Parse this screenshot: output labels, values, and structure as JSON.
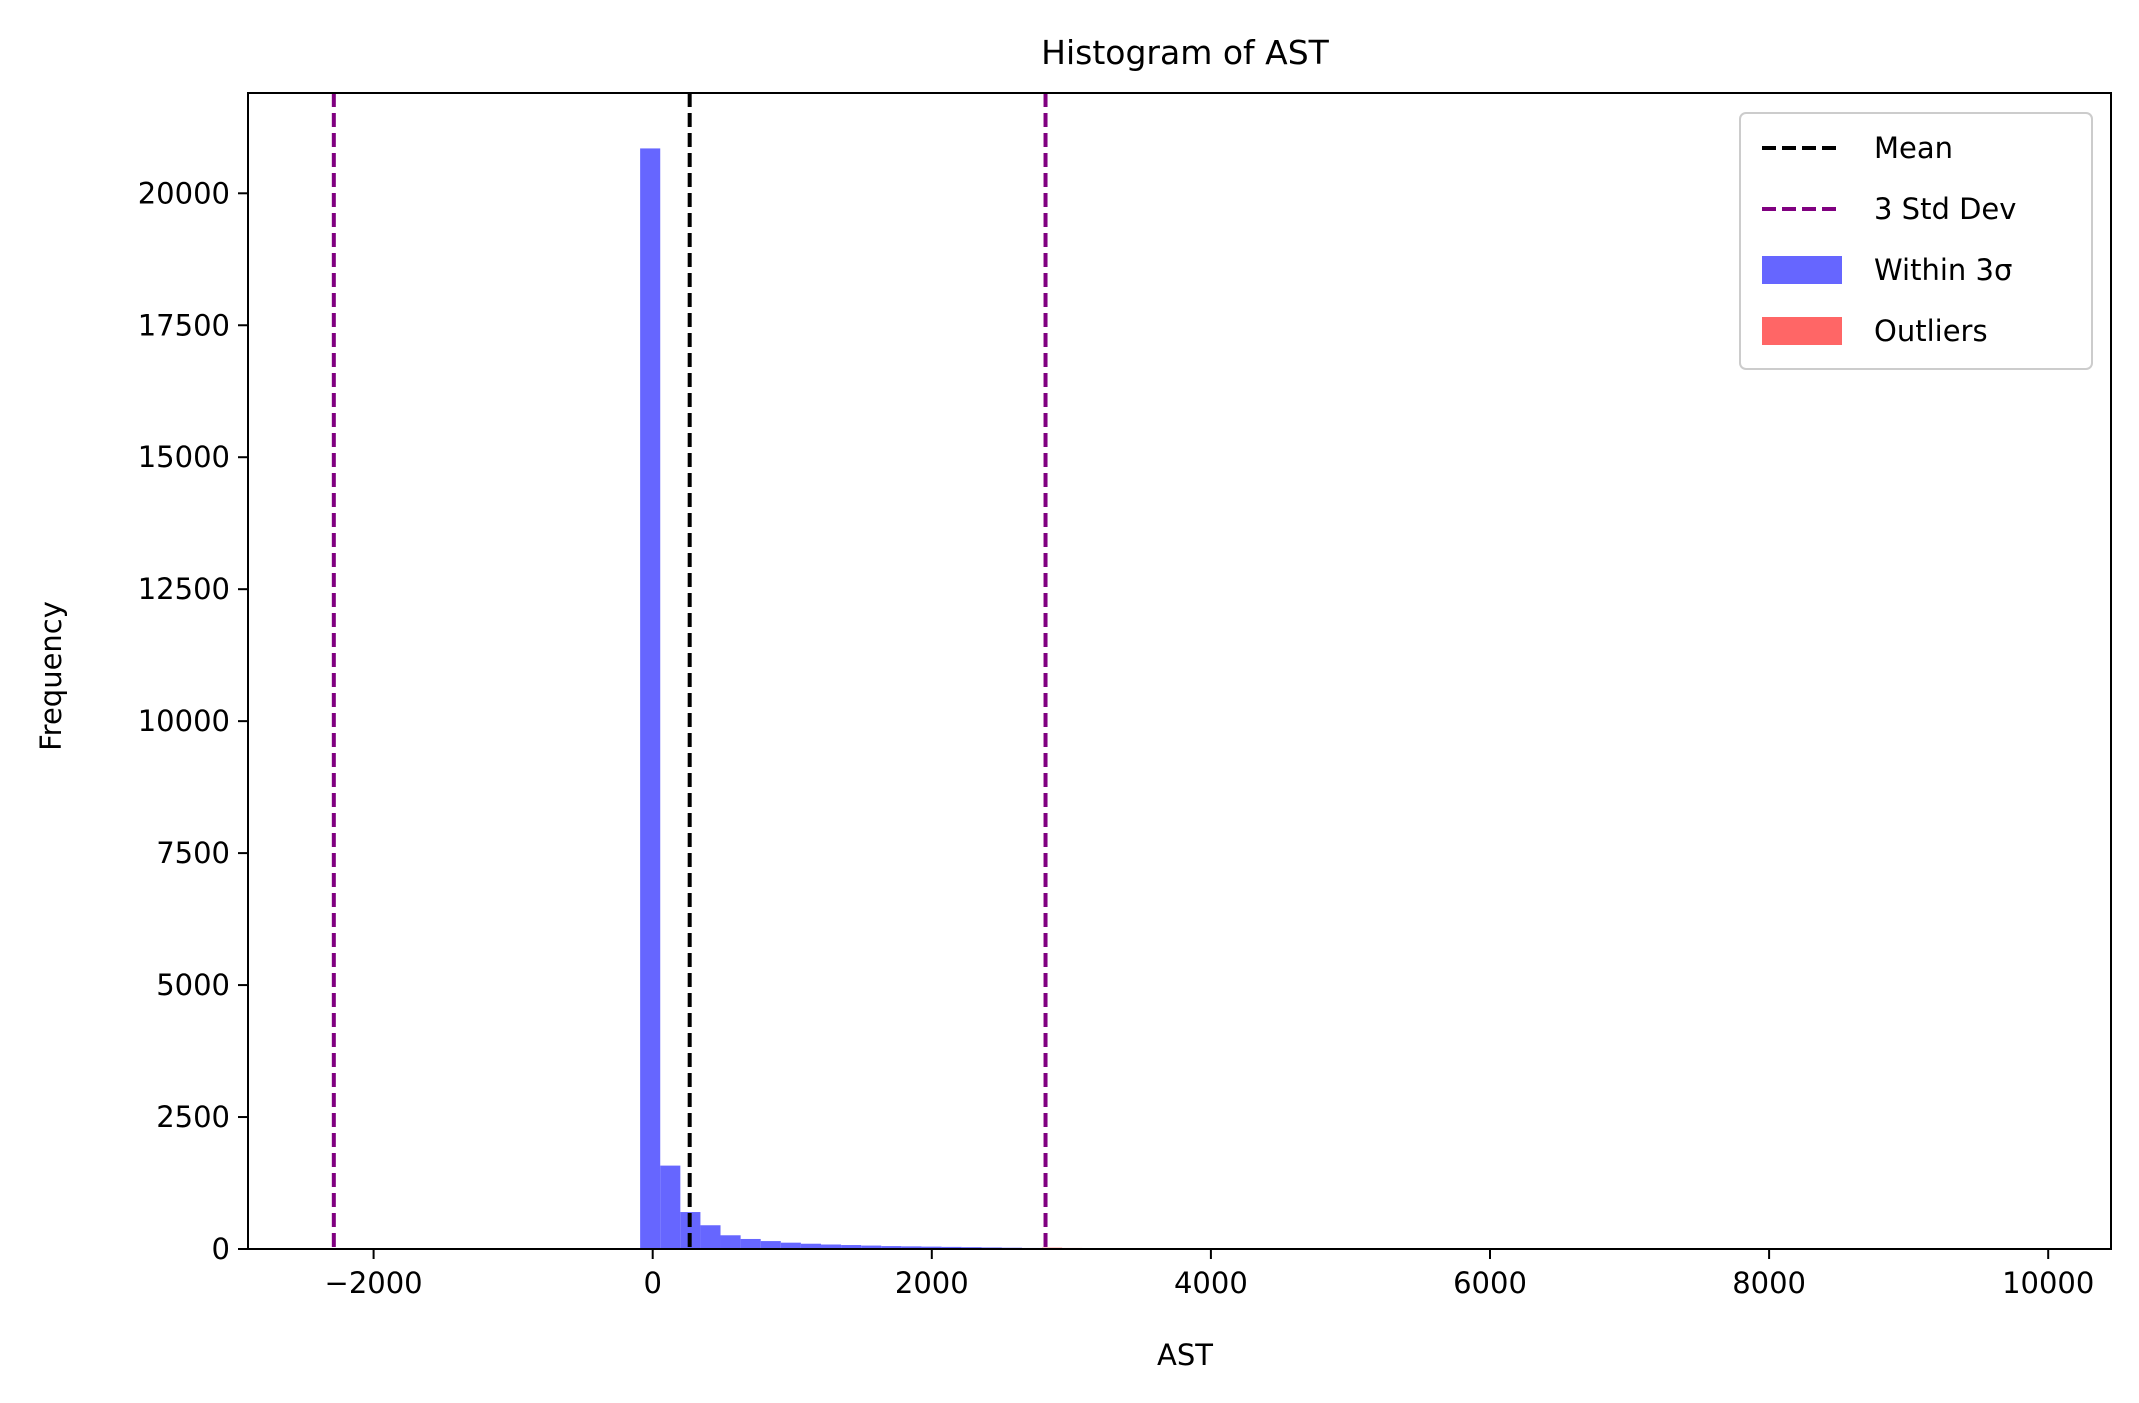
{
  "chart_data": {
    "type": "bar",
    "title": "Histogram of AST",
    "xlabel": "AST",
    "ylabel": "Frequency",
    "xlim": [
      -2900,
      10450
    ],
    "ylim": [
      0,
      21900
    ],
    "xticks": [
      -2000,
      0,
      2000,
      4000,
      6000,
      8000,
      10000
    ],
    "xtick_labels": [
      "−2000",
      "0",
      "2000",
      "4000",
      "6000",
      "8000",
      "10000"
    ],
    "yticks": [
      0,
      2500,
      5000,
      7500,
      10000,
      12500,
      15000,
      17500,
      20000
    ],
    "ytick_labels": [
      "0",
      "2500",
      "5000",
      "7500",
      "10000",
      "12500",
      "15000",
      "17500",
      "20000"
    ],
    "grid": false,
    "legend_position": "top-right",
    "colors": {
      "within": "#6666ff",
      "outliers": "#ff6666",
      "mean_line": "#000000",
      "std_line": "#800080"
    },
    "bin_width": 144,
    "series": [
      {
        "name": "Within 3σ",
        "bins_start": [
          -90,
          54,
          198,
          342,
          486,
          630,
          774,
          918,
          1062,
          1206,
          1350,
          1494,
          1638,
          1782,
          1926,
          2070,
          2214,
          2358,
          2502,
          2646
        ],
        "values": [
          20850,
          1580,
          700,
          450,
          260,
          190,
          150,
          120,
          100,
          85,
          75,
          65,
          55,
          50,
          45,
          40,
          35,
          30,
          25,
          20
        ]
      },
      {
        "name": "Outliers",
        "bins_start": [
          2790,
          2934,
          3078,
          3222,
          3366,
          3510,
          3654,
          3798,
          3942,
          4086
        ],
        "values": [
          25,
          20,
          18,
          15,
          12,
          10,
          8,
          6,
          5,
          3
        ]
      }
    ],
    "lines": [
      {
        "name": "Mean",
        "x": 265,
        "style": "dashed",
        "color": "#000000"
      },
      {
        "name": "3 Std Dev",
        "x": -2285,
        "style": "dashed",
        "color": "#800080"
      },
      {
        "name": "3 Std Dev",
        "x": 2815,
        "style": "dashed",
        "color": "#800080"
      }
    ],
    "legend": [
      {
        "label": "Mean",
        "kind": "line",
        "color": "#000000"
      },
      {
        "label": "3 Std Dev",
        "kind": "line",
        "color": "#800080"
      },
      {
        "label": "Within 3σ",
        "kind": "patch",
        "color": "#6666ff"
      },
      {
        "label": "Outliers",
        "kind": "patch",
        "color": "#ff6666"
      }
    ]
  }
}
